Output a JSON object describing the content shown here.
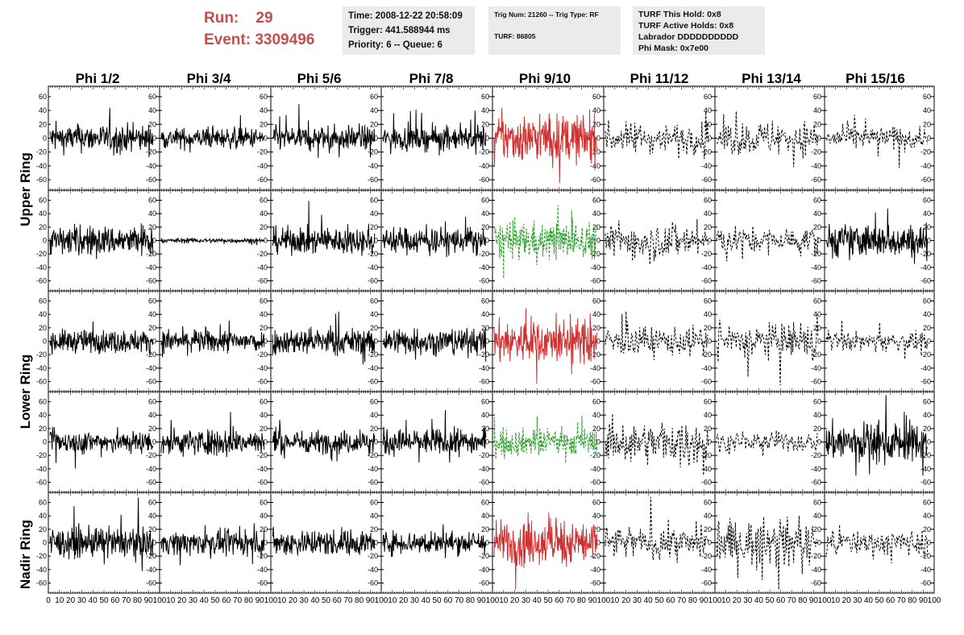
{
  "header": {
    "run_label": "Run:",
    "run_value": "29",
    "event_label": "Event:",
    "event_value": "3309496"
  },
  "info_box_1": {
    "time": "Time: 2008-12-22 20:58:09",
    "trigger": "Trigger: 441.588944 ms",
    "priority": "Priority: 6 -- Queue: 6"
  },
  "info_box_2": {
    "trig": "Trig Num: 21260 -- Trig Type: RF",
    "turf": "TURF: 86805"
  },
  "info_box_3": {
    "hold": "TURF This Hold: 0x8",
    "active": "TURF Active Holds: 0x8",
    "labrador": "Labrador DDDDDDDDDD",
    "phimask": "Phi Mask: 0x7e00"
  },
  "columns": [
    "Phi 1/2",
    "Phi 3/4",
    "Phi 5/6",
    "Phi 7/8",
    "Phi 9/10",
    "Phi 11/12",
    "Phi 13/14",
    "Phi 15/16"
  ],
  "ring_labels": [
    "Upper Ring",
    "Lower Ring",
    "Nadir Ring"
  ],
  "y_ticks": [
    "60",
    "40",
    "20",
    "0",
    "-20",
    "-40",
    "-60"
  ],
  "x_ticks_first": "0 10 20 30 40 50 60 70 80 90 100",
  "x_ticks_row": "10 20 30 40 50 60 70 80 90 100",
  "colors": {
    "run_text": "#c0504d",
    "info_bg": "#ebebeb",
    "trace": "#000000",
    "trace_red": "#d03030",
    "trace_green": "#2a9a2a"
  },
  "panels": [
    [
      "solid",
      "solid",
      "solid",
      "solid",
      "red",
      "dashed",
      "dashed",
      "dashed"
    ],
    [
      "solid",
      "flat",
      "solid",
      "solid",
      "green",
      "dashed",
      "dashed",
      "solid"
    ],
    [
      "solid",
      "solid",
      "solid",
      "solid",
      "red",
      "dashed",
      "dashed",
      "dashed"
    ],
    [
      "solid",
      "solid",
      "solid",
      "solid",
      "green",
      "dashed",
      "dashed",
      "solid"
    ],
    [
      "solid",
      "solid",
      "solid",
      "solid",
      "red",
      "dashed",
      "dashed",
      "dashed"
    ]
  ],
  "amplitudes": [
    [
      16,
      12,
      14,
      14,
      28,
      18,
      20,
      14
    ],
    [
      18,
      3,
      16,
      16,
      22,
      24,
      16,
      20
    ],
    [
      14,
      14,
      16,
      16,
      26,
      18,
      22,
      12
    ],
    [
      14,
      16,
      14,
      16,
      16,
      26,
      12,
      24
    ],
    [
      18,
      14,
      16,
      14,
      28,
      20,
      28,
      16
    ]
  ]
}
